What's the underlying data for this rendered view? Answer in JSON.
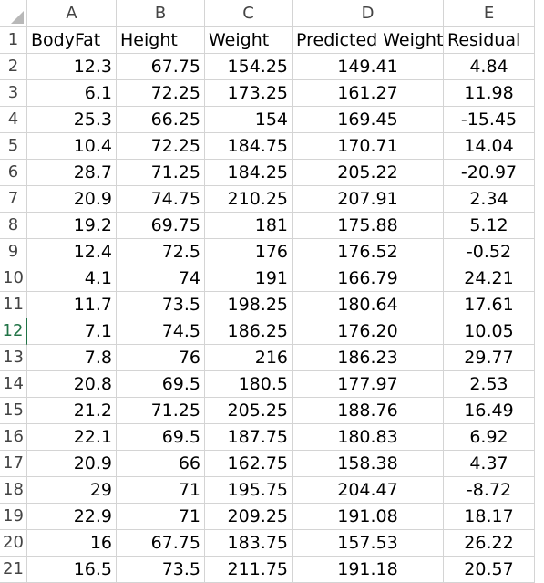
{
  "spreadsheet": {
    "column_letters": [
      "A",
      "B",
      "C",
      "D",
      "E"
    ],
    "header_row": {
      "row_number": "1",
      "cells": [
        "BodyFat",
        "Height",
        "Weight",
        "Predicted Weight",
        "Residual"
      ]
    },
    "selected_row_number": "12",
    "selection_color": "#217346",
    "rows": [
      {
        "num": "2",
        "cells": [
          "12.3",
          "67.75",
          "154.25",
          "149.41",
          "4.84"
        ]
      },
      {
        "num": "3",
        "cells": [
          "6.1",
          "72.25",
          "173.25",
          "161.27",
          "11.98"
        ]
      },
      {
        "num": "4",
        "cells": [
          "25.3",
          "66.25",
          "154",
          "169.45",
          "-15.45"
        ]
      },
      {
        "num": "5",
        "cells": [
          "10.4",
          "72.25",
          "184.75",
          "170.71",
          "14.04"
        ]
      },
      {
        "num": "6",
        "cells": [
          "28.7",
          "71.25",
          "184.25",
          "205.22",
          "-20.97"
        ]
      },
      {
        "num": "7",
        "cells": [
          "20.9",
          "74.75",
          "210.25",
          "207.91",
          "2.34"
        ]
      },
      {
        "num": "8",
        "cells": [
          "19.2",
          "69.75",
          "181",
          "175.88",
          "5.12"
        ]
      },
      {
        "num": "9",
        "cells": [
          "12.4",
          "72.5",
          "176",
          "176.52",
          "-0.52"
        ]
      },
      {
        "num": "10",
        "cells": [
          "4.1",
          "74",
          "191",
          "166.79",
          "24.21"
        ]
      },
      {
        "num": "11",
        "cells": [
          "11.7",
          "73.5",
          "198.25",
          "180.64",
          "17.61"
        ]
      },
      {
        "num": "12",
        "cells": [
          "7.1",
          "74.5",
          "186.25",
          "176.20",
          "10.05"
        ]
      },
      {
        "num": "13",
        "cells": [
          "7.8",
          "76",
          "216",
          "186.23",
          "29.77"
        ]
      },
      {
        "num": "14",
        "cells": [
          "20.8",
          "69.5",
          "180.5",
          "177.97",
          "2.53"
        ]
      },
      {
        "num": "15",
        "cells": [
          "21.2",
          "71.25",
          "205.25",
          "188.76",
          "16.49"
        ]
      },
      {
        "num": "16",
        "cells": [
          "22.1",
          "69.5",
          "187.75",
          "180.83",
          "6.92"
        ]
      },
      {
        "num": "17",
        "cells": [
          "20.9",
          "66",
          "162.75",
          "158.38",
          "4.37"
        ]
      },
      {
        "num": "18",
        "cells": [
          "29",
          "71",
          "195.75",
          "204.47",
          "-8.72"
        ]
      },
      {
        "num": "19",
        "cells": [
          "22.9",
          "71",
          "209.25",
          "191.08",
          "18.17"
        ]
      },
      {
        "num": "20",
        "cells": [
          "16",
          "67.75",
          "183.75",
          "157.53",
          "26.22"
        ]
      },
      {
        "num": "21",
        "cells": [
          "16.5",
          "73.5",
          "211.75",
          "191.18",
          "20.57"
        ]
      }
    ]
  }
}
